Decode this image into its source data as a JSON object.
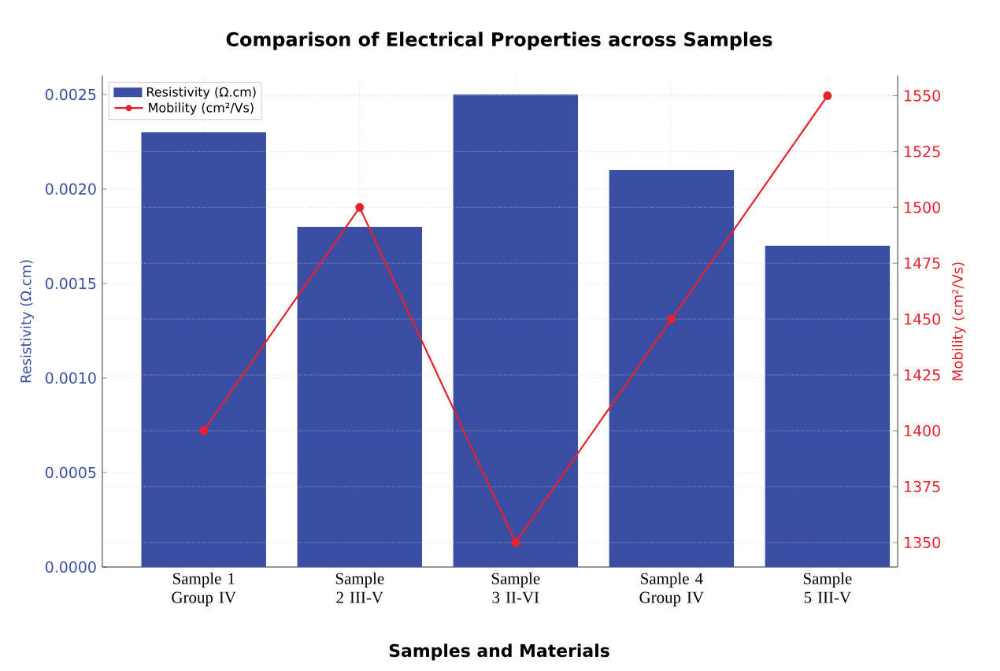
{
  "chart_data": {
    "type": "bar",
    "title": "Comparison of Electrical Properties across Samples",
    "xlabel": "Samples and Materials",
    "ylabel": "Resistivity (Ω.cm)",
    "y2label": "Mobility (cm²/Vs)",
    "categories": [
      "Sample 1 Group IV",
      "Sample 2 III-V",
      "Sample 3 II-VI",
      "Sample 4 Group IV",
      "Sample 5 III-V"
    ],
    "series": [
      {
        "name": "Resistivity (Ω.cm)",
        "color": "#3a4fa3",
        "values": [
          0.0023,
          0.0018,
          0.0025,
          0.0021,
          0.0017
        ]
      },
      {
        "name": "Mobility (cm²/Vs)",
        "type": "line",
        "axis": "y2",
        "color": "#e8212b",
        "marker": "circle",
        "values": [
          1400,
          1500,
          1350,
          1450,
          1550
        ]
      }
    ],
    "ylim": [
      0,
      0.0026
    ],
    "yticks": [
      {
        "value": 0,
        "label": "0.0000"
      },
      {
        "value": 0.0005,
        "label": "0.0005"
      },
      {
        "value": 0.001,
        "label": "0.0010"
      },
      {
        "value": 0.0015,
        "label": "0.0015"
      },
      {
        "value": 0.002,
        "label": "0.0020"
      },
      {
        "value": 0.0025,
        "label": "0.0025"
      }
    ],
    "y2lim": [
      1339,
      1559
    ],
    "y2ticks": [
      1350,
      1375,
      1400,
      1425,
      1450,
      1475,
      1500,
      1525,
      1550
    ],
    "grid": true,
    "legend": "top left"
  }
}
